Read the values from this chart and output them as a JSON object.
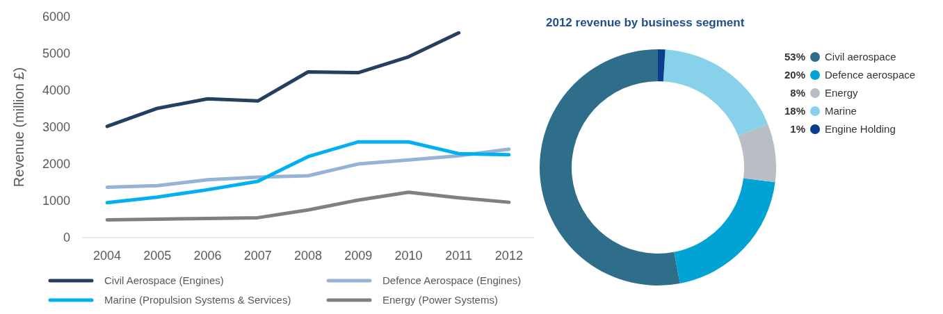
{
  "chart_data": [
    {
      "type": "line",
      "ylabel": "Revenue (million £)",
      "categories": [
        "2004",
        "2005",
        "2006",
        "2007",
        "2008",
        "2009",
        "2010",
        "2011",
        "2012"
      ],
      "ylim": [
        0,
        6000
      ],
      "yticks": [
        0,
        1000,
        2000,
        3000,
        4000,
        5000,
        6000
      ],
      "grid": false,
      "legend": "bottom",
      "marker": "none",
      "line_style": "solid",
      "series": [
        {
          "name": "Civil Aerospace (Engines)",
          "color": "#243f60",
          "values": [
            3020,
            3510,
            3770,
            3710,
            4500,
            4480,
            4910,
            5560,
            null
          ]
        },
        {
          "name": "Defence Aerospace (Engines)",
          "color": "#95b3d7",
          "values": [
            1370,
            1410,
            1570,
            1640,
            1680,
            2000,
            2110,
            2220,
            2400
          ]
        },
        {
          "name": "Marine (Propulsion Systems & Services)",
          "color": "#00b0f0",
          "values": [
            950,
            1100,
            1300,
            1530,
            2200,
            2600,
            2600,
            2280,
            2250
          ]
        },
        {
          "name": "Energy (Power Systems)",
          "color": "#808080",
          "values": [
            480,
            500,
            520,
            540,
            750,
            1020,
            1230,
            1080,
            960
          ]
        }
      ]
    },
    {
      "type": "donut",
      "title": "2012 revenue by business segment",
      "categories": [
        "Civil aerospace",
        "Defence aerospace",
        "Energy",
        "Marine",
        "Engine Holding"
      ],
      "values": [
        53,
        20,
        8,
        18,
        1
      ],
      "colors": [
        "#2e6e8a",
        "#00a3d4",
        "#b8bec4",
        "#87d1ea",
        "#0a3d8c"
      ],
      "legend": "right",
      "value_labels": [
        "53%",
        "20%",
        "8%",
        "18%",
        "1%"
      ]
    }
  ]
}
